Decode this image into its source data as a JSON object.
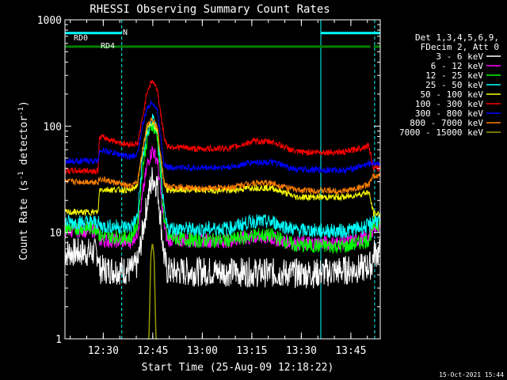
{
  "chart_data": {
    "type": "line",
    "title": "RHESSI Observing Summary Count Rates",
    "xlabel": "Start Time (25-Aug-09 12:18:22)",
    "ylabel_main": "Count Rate (s",
    "ylabel_sup1": "-1",
    "ylabel_mid": " detector",
    "ylabel_sup2": "-1",
    "ylabel_end": ")",
    "yscale": "log",
    "ylim": [
      1,
      1000
    ],
    "xlim_minutes": [
      0,
      95.5
    ],
    "x_ticks": [
      {
        "label": "12:30",
        "minute": 11.6
      },
      {
        "label": "12:45",
        "minute": 26.6
      },
      {
        "label": "13:00",
        "minute": 41.6
      },
      {
        "label": "13:15",
        "minute": 56.6
      },
      {
        "label": "13:30",
        "minute": 71.6
      },
      {
        "label": "13:45",
        "minute": 86.6
      }
    ],
    "y_ticks": [
      {
        "label": "1",
        "value": 1
      },
      {
        "label": "10",
        "value": 10
      },
      {
        "label": "100",
        "value": 100
      },
      {
        "label": "1000",
        "value": 1000
      }
    ],
    "legend_header": [
      "Det 1,3,4,5,6,9,",
      "FDecim 2, Att 0"
    ],
    "legend_position": "right",
    "series": [
      {
        "name": "3 - 6 keV",
        "color": "#ffffff",
        "points": [
          [
            0,
            6.5
          ],
          [
            10,
            6.5
          ],
          [
            10.5,
            4.5
          ],
          [
            20,
            4.4
          ],
          [
            22,
            5
          ],
          [
            23.5,
            10
          ],
          [
            25,
            20
          ],
          [
            26.5,
            33
          ],
          [
            28,
            28
          ],
          [
            30,
            6
          ],
          [
            31,
            4.3
          ],
          [
            45,
            4.3
          ],
          [
            60,
            4.2
          ],
          [
            75,
            4.1
          ],
          [
            90,
            4.6
          ],
          [
            93,
            5
          ],
          [
            93.5,
            6.4
          ],
          [
            95.5,
            6.5
          ]
        ]
      },
      {
        "name": "6 - 12 keV",
        "color": "#ff00ff",
        "points": [
          [
            0,
            10.5
          ],
          [
            10,
            10.5
          ],
          [
            10.5,
            8.5
          ],
          [
            20,
            8.2
          ],
          [
            22,
            10
          ],
          [
            23.5,
            22
          ],
          [
            25,
            45
          ],
          [
            26.5,
            60
          ],
          [
            28,
            48
          ],
          [
            30,
            12
          ],
          [
            31,
            8.6
          ],
          [
            40,
            8.4
          ],
          [
            50,
            8.4
          ],
          [
            57,
            9
          ],
          [
            62,
            8.9
          ],
          [
            70,
            7.9
          ],
          [
            85,
            8
          ],
          [
            92,
            9
          ],
          [
            93.5,
            11.3
          ],
          [
            95.5,
            11.5
          ]
        ]
      },
      {
        "name": "12 - 25 keV",
        "color": "#00ff00",
        "points": [
          [
            0,
            11
          ],
          [
            10,
            11
          ],
          [
            10.5,
            9.2
          ],
          [
            20,
            9
          ],
          [
            22,
            12
          ],
          [
            23.5,
            40
          ],
          [
            25,
            80
          ],
          [
            26.5,
            105
          ],
          [
            28,
            80
          ],
          [
            30,
            14
          ],
          [
            31,
            9
          ],
          [
            40,
            8.4
          ],
          [
            50,
            8.5
          ],
          [
            58,
            9.5
          ],
          [
            63,
            9.3
          ],
          [
            70,
            7.5
          ],
          [
            85,
            7.4
          ],
          [
            92,
            8.5
          ],
          [
            93.5,
            11.7
          ],
          [
            95.5,
            12
          ]
        ]
      },
      {
        "name": "25 - 50 keV",
        "color": "#00ffff",
        "points": [
          [
            0,
            12.5
          ],
          [
            10,
            12.5
          ],
          [
            10.5,
            11.5
          ],
          [
            20,
            11.3
          ],
          [
            22,
            14
          ],
          [
            23.5,
            50
          ],
          [
            25,
            90
          ],
          [
            26.5,
            115
          ],
          [
            28,
            90
          ],
          [
            30,
            16
          ],
          [
            31,
            11
          ],
          [
            40,
            10.7
          ],
          [
            50,
            11
          ],
          [
            57,
            12.8
          ],
          [
            63,
            12.5
          ],
          [
            70,
            10.5
          ],
          [
            85,
            10.3
          ],
          [
            92,
            11.5
          ],
          [
            93.5,
            13
          ],
          [
            95.5,
            13
          ]
        ]
      },
      {
        "name": "50 - 100 keV",
        "color": "#ffff00",
        "points": [
          [
            0,
            15.5
          ],
          [
            10,
            15.5
          ],
          [
            10.5,
            25.5
          ],
          [
            20,
            25
          ],
          [
            22,
            28
          ],
          [
            23.5,
            60
          ],
          [
            25,
            95
          ],
          [
            26.5,
            110
          ],
          [
            28,
            90
          ],
          [
            30,
            30
          ],
          [
            31,
            25
          ],
          [
            40,
            25
          ],
          [
            50,
            24.8
          ],
          [
            57,
            26.5
          ],
          [
            63,
            26
          ],
          [
            70,
            21.5
          ],
          [
            85,
            21.5
          ],
          [
            92,
            24
          ],
          [
            93.5,
            15
          ],
          [
            95.5,
            15
          ]
        ]
      },
      {
        "name": "100 - 300 keV",
        "color": "#ff0000",
        "points": [
          [
            0,
            38
          ],
          [
            10,
            38
          ],
          [
            10.5,
            80
          ],
          [
            18,
            68
          ],
          [
            22,
            68
          ],
          [
            23.5,
            120
          ],
          [
            25,
            220
          ],
          [
            26.5,
            270
          ],
          [
            28,
            220
          ],
          [
            30,
            80
          ],
          [
            31,
            65
          ],
          [
            40,
            61
          ],
          [
            50,
            62
          ],
          [
            57,
            72
          ],
          [
            63,
            71
          ],
          [
            70,
            57
          ],
          [
            85,
            57
          ],
          [
            92,
            66
          ],
          [
            93.5,
            40
          ],
          [
            95.5,
            40
          ]
        ]
      },
      {
        "name": "300 - 800 keV",
        "color": "#0000ff",
        "points": [
          [
            0,
            47
          ],
          [
            10,
            47
          ],
          [
            10.5,
            60
          ],
          [
            20,
            51
          ],
          [
            22,
            55
          ],
          [
            23.5,
            100
          ],
          [
            25,
            150
          ],
          [
            26.5,
            170
          ],
          [
            28,
            140
          ],
          [
            30,
            45
          ],
          [
            31,
            41
          ],
          [
            40,
            40.5
          ],
          [
            50,
            41
          ],
          [
            57,
            46
          ],
          [
            63,
            45.5
          ],
          [
            70,
            39
          ],
          [
            85,
            38.5
          ],
          [
            92,
            44
          ],
          [
            93.5,
            45
          ],
          [
            95.5,
            45
          ]
        ]
      },
      {
        "name": "800 - 7000 keV",
        "color": "#ff8000",
        "points": [
          [
            0,
            30
          ],
          [
            10,
            30
          ],
          [
            10.5,
            32
          ],
          [
            20,
            27
          ],
          [
            22,
            30
          ],
          [
            23.5,
            60
          ],
          [
            25,
            105
          ],
          [
            26.5,
            120
          ],
          [
            28,
            95
          ],
          [
            30,
            29
          ],
          [
            31,
            27
          ],
          [
            40,
            26
          ],
          [
            50,
            26.5
          ],
          [
            57,
            29.5
          ],
          [
            63,
            29
          ],
          [
            70,
            25
          ],
          [
            85,
            24.5
          ],
          [
            92,
            28
          ],
          [
            93.5,
            34
          ],
          [
            95.5,
            34
          ]
        ]
      },
      {
        "name": "7000 - 15000 keV",
        "color": "#999900",
        "points": [
          [
            25,
            0.5
          ],
          [
            25.5,
            1.2
          ],
          [
            26,
            6
          ],
          [
            26.5,
            8
          ],
          [
            27,
            6
          ],
          [
            27.5,
            1.2
          ],
          [
            28,
            0.5
          ]
        ]
      }
    ],
    "annotations": [
      {
        "label": "RD0",
        "color": "#00ffff",
        "y_value": 750,
        "segments": [
          [
            0,
            17.2
          ],
          [
            77.5,
            95.5
          ]
        ]
      },
      {
        "label": "RD4",
        "color": "#008000",
        "y_value": 560,
        "segments": [
          [
            0,
            10
          ],
          [
            10,
            92.5
          ],
          [
            93.5,
            95.5
          ]
        ]
      },
      {
        "label": "N",
        "color": "#00ffff"
      }
    ],
    "vertical_lines": [
      {
        "minute": 17.2,
        "style": "dashed",
        "color": "#00ffff"
      },
      {
        "minute": 77.5,
        "style": "solid",
        "color": "#00ffff"
      },
      {
        "minute": 93.8,
        "style": "dashed",
        "color": "#00ffff"
      }
    ]
  },
  "footer_timestamp": "15-Oct-2021 15:44"
}
